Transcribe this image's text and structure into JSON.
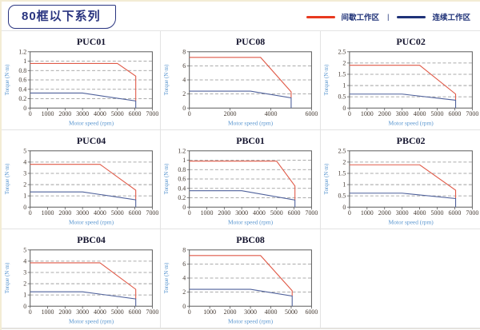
{
  "header": {
    "badge": "80框以下系列"
  },
  "legend": {
    "items": [
      {
        "label": "间歇工作区",
        "color": "#e8391f"
      },
      {
        "label": "连续工作区",
        "color": "#1f3278"
      }
    ],
    "separator": "|"
  },
  "chart_data": [
    {
      "type": "line",
      "title": "PUC01",
      "xlabel": "Motor speed (rpm)",
      "ylabel": "Torque (N·m)",
      "xlim": [
        0,
        7000
      ],
      "ylim": [
        0,
        1.2
      ],
      "xticks": [
        0,
        1000,
        2000,
        3000,
        4000,
        5000,
        6000,
        7000
      ],
      "yticks": [
        0,
        0.2,
        0.4,
        0.6,
        0.8,
        1,
        1.2
      ],
      "grid": "horizontal-dashed",
      "legend_position": "none",
      "series": [
        {
          "name": "间歇工作区",
          "color": "#e05a48",
          "points": [
            [
              0,
              0.95
            ],
            [
              5000,
              0.95
            ],
            [
              6050,
              0.68
            ],
            [
              6050,
              0.15
            ]
          ]
        },
        {
          "name": "连续工作区",
          "color": "#4f619b",
          "points": [
            [
              0,
              0.32
            ],
            [
              3000,
              0.32
            ],
            [
              6050,
              0.15
            ],
            [
              6050,
              0
            ]
          ]
        }
      ]
    },
    {
      "type": "line",
      "title": "PUC08",
      "xlabel": "Motor speed (rpm)",
      "ylabel": "Torque (N·m)",
      "xlim": [
        0,
        6000
      ],
      "ylim": [
        0,
        8
      ],
      "xticks": [
        0,
        2000,
        4000,
        6000
      ],
      "yticks": [
        0,
        2,
        4,
        6,
        8
      ],
      "grid": "horizontal-dashed",
      "legend_position": "none",
      "series": [
        {
          "name": "间歇工作区",
          "color": "#e05a48",
          "points": [
            [
              0,
              7.2
            ],
            [
              3500,
              7.2
            ],
            [
              5000,
              2.3
            ],
            [
              5000,
              1.45
            ]
          ]
        },
        {
          "name": "连续工作区",
          "color": "#4f619b",
          "points": [
            [
              0,
              2.4
            ],
            [
              3000,
              2.4
            ],
            [
              5000,
              1.45
            ],
            [
              5000,
              0
            ]
          ]
        }
      ]
    },
    {
      "type": "line",
      "title": "PUC02",
      "xlabel": "Motor speed (rpm)",
      "ylabel": "Torque (N·m)",
      "xlim": [
        0,
        7000
      ],
      "ylim": [
        0,
        2.5
      ],
      "xticks": [
        0,
        1000,
        2000,
        3000,
        4000,
        5000,
        6000,
        7000
      ],
      "yticks": [
        0,
        0.5,
        1,
        1.5,
        2,
        2.5
      ],
      "grid": "horizontal-dashed",
      "legend_position": "none",
      "series": [
        {
          "name": "间歇工作区",
          "color": "#e05a48",
          "points": [
            [
              0,
              1.9
            ],
            [
              4000,
              1.9
            ],
            [
              6050,
              0.62
            ],
            [
              6050,
              0.35
            ]
          ]
        },
        {
          "name": "连续工作区",
          "color": "#4f619b",
          "points": [
            [
              0,
              0.62
            ],
            [
              3000,
              0.62
            ],
            [
              6050,
              0.35
            ],
            [
              6050,
              0
            ]
          ]
        }
      ]
    },
    {
      "type": "line",
      "title": "PUC04",
      "xlabel": "Motor speed (rpm)",
      "ylabel": "Torque (N·m)",
      "xlim": [
        0,
        7000
      ],
      "ylim": [
        0,
        5
      ],
      "xticks": [
        0,
        1000,
        2000,
        3000,
        4000,
        5000,
        6000,
        7000
      ],
      "yticks": [
        0,
        1,
        2,
        3,
        4,
        5
      ],
      "grid": "horizontal-dashed",
      "legend_position": "none",
      "series": [
        {
          "name": "间歇工作区",
          "color": "#e05a48",
          "points": [
            [
              0,
              3.8
            ],
            [
              4000,
              3.8
            ],
            [
              6050,
              1.5
            ],
            [
              6050,
              0.65
            ]
          ]
        },
        {
          "name": "连续工作区",
          "color": "#4f619b",
          "points": [
            [
              0,
              1.35
            ],
            [
              3000,
              1.35
            ],
            [
              6050,
              0.65
            ],
            [
              6050,
              0
            ]
          ]
        }
      ]
    },
    {
      "type": "line",
      "title": "PBC01",
      "xlabel": "Motor speed (rpm)",
      "ylabel": "Torque (N·m)",
      "xlim": [
        0,
        7000
      ],
      "ylim": [
        0,
        1.2
      ],
      "xticks": [
        0,
        1000,
        2000,
        3000,
        4000,
        5000,
        6000,
        7000
      ],
      "yticks": [
        0,
        0.2,
        0.4,
        0.6,
        0.8,
        1,
        1.2
      ],
      "grid": "horizontal-dashed",
      "legend_position": "none",
      "series": [
        {
          "name": "间歇工作区",
          "color": "#e05a48",
          "points": [
            [
              0,
              0.98
            ],
            [
              5000,
              0.98
            ],
            [
              6050,
              0.45
            ],
            [
              6050,
              0.15
            ]
          ]
        },
        {
          "name": "连续工作区",
          "color": "#4f619b",
          "points": [
            [
              0,
              0.35
            ],
            [
              3000,
              0.35
            ],
            [
              6050,
              0.15
            ],
            [
              6050,
              0
            ]
          ]
        }
      ]
    },
    {
      "type": "line",
      "title": "PBC02",
      "xlabel": "Motor speed (rpm)",
      "ylabel": "Torque (N·m)",
      "xlim": [
        0,
        7000
      ],
      "ylim": [
        0,
        2.5
      ],
      "xticks": [
        0,
        1000,
        2000,
        3000,
        4000,
        5000,
        6000,
        7000
      ],
      "yticks": [
        0,
        0.5,
        1,
        1.5,
        2,
        2.5
      ],
      "grid": "horizontal-dashed",
      "legend_position": "none",
      "series": [
        {
          "name": "间歇工作区",
          "color": "#e05a48",
          "points": [
            [
              0,
              1.88
            ],
            [
              4000,
              1.88
            ],
            [
              6050,
              0.75
            ],
            [
              6050,
              0.38
            ]
          ]
        },
        {
          "name": "连续工作区",
          "color": "#4f619b",
          "points": [
            [
              0,
              0.62
            ],
            [
              3000,
              0.62
            ],
            [
              6050,
              0.38
            ],
            [
              6050,
              0
            ]
          ]
        }
      ]
    },
    {
      "type": "line",
      "title": "PBC04",
      "xlabel": "Motor speed (rpm)",
      "ylabel": "Torque (N·m)",
      "xlim": [
        0,
        7000
      ],
      "ylim": [
        0,
        5
      ],
      "xticks": [
        0,
        1000,
        2000,
        3000,
        4000,
        5000,
        6000,
        7000
      ],
      "yticks": [
        0,
        1,
        2,
        3,
        4,
        5
      ],
      "grid": "horizontal-dashed",
      "legend_position": "none",
      "series": [
        {
          "name": "间歇工作区",
          "color": "#e05a48",
          "points": [
            [
              0,
              3.85
            ],
            [
              4000,
              3.85
            ],
            [
              6050,
              1.5
            ],
            [
              6050,
              0.65
            ]
          ]
        },
        {
          "name": "连续工作区",
          "color": "#4f619b",
          "points": [
            [
              0,
              1.28
            ],
            [
              3000,
              1.28
            ],
            [
              6050,
              0.65
            ],
            [
              6050,
              0
            ]
          ]
        }
      ]
    },
    {
      "type": "line",
      "title": "PBC08",
      "xlabel": "Motor speed (rpm)",
      "ylabel": "Torque (N·m)",
      "xlim": [
        0,
        6000
      ],
      "ylim": [
        0,
        8
      ],
      "xticks": [
        0,
        1000,
        2000,
        3000,
        4000,
        5000,
        6000
      ],
      "yticks": [
        0,
        2,
        4,
        6,
        8
      ],
      "grid": "horizontal-dashed",
      "legend_position": "none",
      "series": [
        {
          "name": "间歇工作区",
          "color": "#e05a48",
          "points": [
            [
              0,
              7.2
            ],
            [
              3500,
              7.2
            ],
            [
              5050,
              2.2
            ],
            [
              5050,
              1.45
            ]
          ]
        },
        {
          "name": "连续工作区",
          "color": "#4f619b",
          "points": [
            [
              0,
              2.4
            ],
            [
              3000,
              2.4
            ],
            [
              5050,
              1.45
            ],
            [
              5050,
              0
            ]
          ]
        }
      ]
    }
  ]
}
